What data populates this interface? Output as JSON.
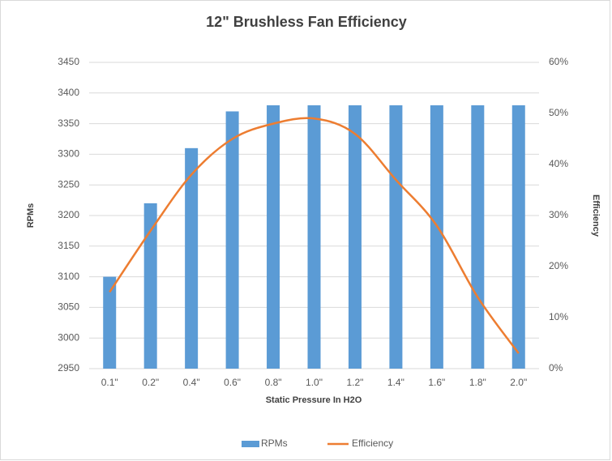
{
  "chart_data": {
    "type": "combo",
    "title": "12\" Brushless Fan Efficiency",
    "x_label": "Static Pressure In H2O",
    "y_label": "RPMs",
    "y2_label": "Efficiency",
    "categories": [
      "0.1\"",
      "0.2\"",
      "0.4\"",
      "0.6\"",
      "0.8\"",
      "1.0\"",
      "1.2\"",
      "1.4\"",
      "1.6\"",
      "1.8\"",
      "2.0\""
    ],
    "series": [
      {
        "name": "RPMs",
        "type": "bar",
        "color": "#5b9bd5",
        "values": [
          3100,
          3220,
          3310,
          3370,
          3380,
          3380,
          3380,
          3380,
          3380,
          3380,
          3380
        ]
      },
      {
        "name": "Efficiency",
        "type": "line",
        "axis": "y2",
        "color": "#ed7d31",
        "values": [
          15,
          27,
          38,
          45,
          48,
          49,
          46,
          37,
          28,
          14,
          3
        ]
      }
    ],
    "ylim": [
      2950,
      3450
    ],
    "yticks": [
      2950,
      3000,
      3050,
      3100,
      3150,
      3200,
      3250,
      3300,
      3350,
      3400,
      3450
    ],
    "y2lim": [
      0,
      60
    ],
    "y2ticks": [
      {
        "value": 0,
        "label": "0%"
      },
      {
        "value": 10,
        "label": "10%"
      },
      {
        "value": 20,
        "label": "20%"
      },
      {
        "value": 30,
        "label": "30%"
      },
      {
        "value": 40,
        "label": "40%"
      },
      {
        "value": 50,
        "label": "50%"
      },
      {
        "value": 60,
        "label": "60%"
      }
    ],
    "grid": true,
    "legend": "bottom"
  }
}
